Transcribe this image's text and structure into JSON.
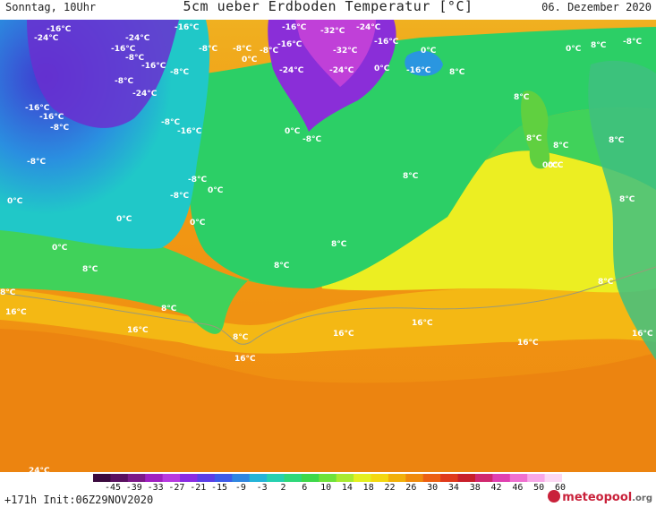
{
  "header": {
    "left": "Sonntag, 10Uhr",
    "title": "5cm ueber Erdboden Temperatur [°C]",
    "right": "06. Dezember 2020"
  },
  "footer": {
    "run_info": "+171h Init:06Z29NOV2020",
    "brand_name": "meteopool",
    "brand_tld": ".org"
  },
  "colorbar": {
    "tick_labels": [
      "-45",
      "-39",
      "-33",
      "-27",
      "-21",
      "-15",
      "-9",
      "-3",
      "2",
      "6",
      "10",
      "14",
      "18",
      "22",
      "26",
      "30",
      "34",
      "38",
      "42",
      "46",
      "50",
      "60"
    ],
    "colors": [
      "#3b0a3e",
      "#5a1060",
      "#7d1a88",
      "#a020c0",
      "#b83ae0",
      "#8a2be2",
      "#5b3ee6",
      "#3d5be8",
      "#2f86e0",
      "#24b4d8",
      "#26d0b0",
      "#2fd87a",
      "#3ed84a",
      "#6ee23a",
      "#a8ea30",
      "#e4f020",
      "#f4d810",
      "#f2b00a",
      "#f08a0c",
      "#ec6012",
      "#e03a1c",
      "#c81f2a",
      "#d0286e",
      "#e040b0",
      "#f070d0",
      "#f8a8e8",
      "#fcd8f4"
    ]
  },
  "map_labels": [
    {
      "text": "-16°C"
    },
    {
      "text": "-24°C"
    },
    {
      "text": "-16°C"
    },
    {
      "text": "-16°C"
    },
    {
      "text": "-24°C"
    },
    {
      "text": "-32°C"
    },
    {
      "text": "-24°C"
    },
    {
      "text": "-16°C"
    },
    {
      "text": "-8°C"
    },
    {
      "text": "-8°C"
    },
    {
      "text": "-8°C"
    },
    {
      "text": "-16°C"
    },
    {
      "text": "-32°C"
    },
    {
      "text": "-16°C"
    },
    {
      "text": "0°C"
    },
    {
      "text": "0°C"
    },
    {
      "text": "-8°C"
    },
    {
      "text": "0°C"
    },
    {
      "text": "-8°C"
    },
    {
      "text": "8°C"
    },
    {
      "text": "-16°C"
    },
    {
      "text": "-24°C"
    },
    {
      "text": "-24°C"
    },
    {
      "text": "0°C"
    },
    {
      "text": "-16°C"
    },
    {
      "text": "-8°C"
    },
    {
      "text": "8°C"
    },
    {
      "text": "-8°C"
    },
    {
      "text": "-24°C"
    },
    {
      "text": "-16°C"
    },
    {
      "text": "8°C"
    },
    {
      "text": "-16°C"
    },
    {
      "text": "-16°C"
    },
    {
      "text": "-8°C"
    },
    {
      "text": "-8°C"
    },
    {
      "text": "0°C"
    },
    {
      "text": "-8°C"
    },
    {
      "text": "8°C"
    },
    {
      "text": "8°C"
    },
    {
      "text": "0°C"
    },
    {
      "text": "8°C"
    },
    {
      "text": "-8°C"
    },
    {
      "text": "0°C"
    },
    {
      "text": "-8°C"
    },
    {
      "text": "8°C"
    },
    {
      "text": "0°C"
    },
    {
      "text": "0°C"
    },
    {
      "text": "-8°C"
    },
    {
      "text": "0°C"
    },
    {
      "text": "8°C"
    },
    {
      "text": "0°C"
    },
    {
      "text": "8°C"
    },
    {
      "text": "0°C"
    },
    {
      "text": "8°C"
    },
    {
      "text": "8°C"
    },
    {
      "text": "8°C"
    },
    {
      "text": "8°C"
    },
    {
      "text": "16°C"
    },
    {
      "text": "8°C"
    },
    {
      "text": "16°C"
    },
    {
      "text": "16°C"
    },
    {
      "text": "16°C"
    },
    {
      "text": "8°C"
    },
    {
      "text": "16°C"
    },
    {
      "text": "16°C"
    },
    {
      "text": "16°C"
    },
    {
      "text": "24°C"
    }
  ]
}
